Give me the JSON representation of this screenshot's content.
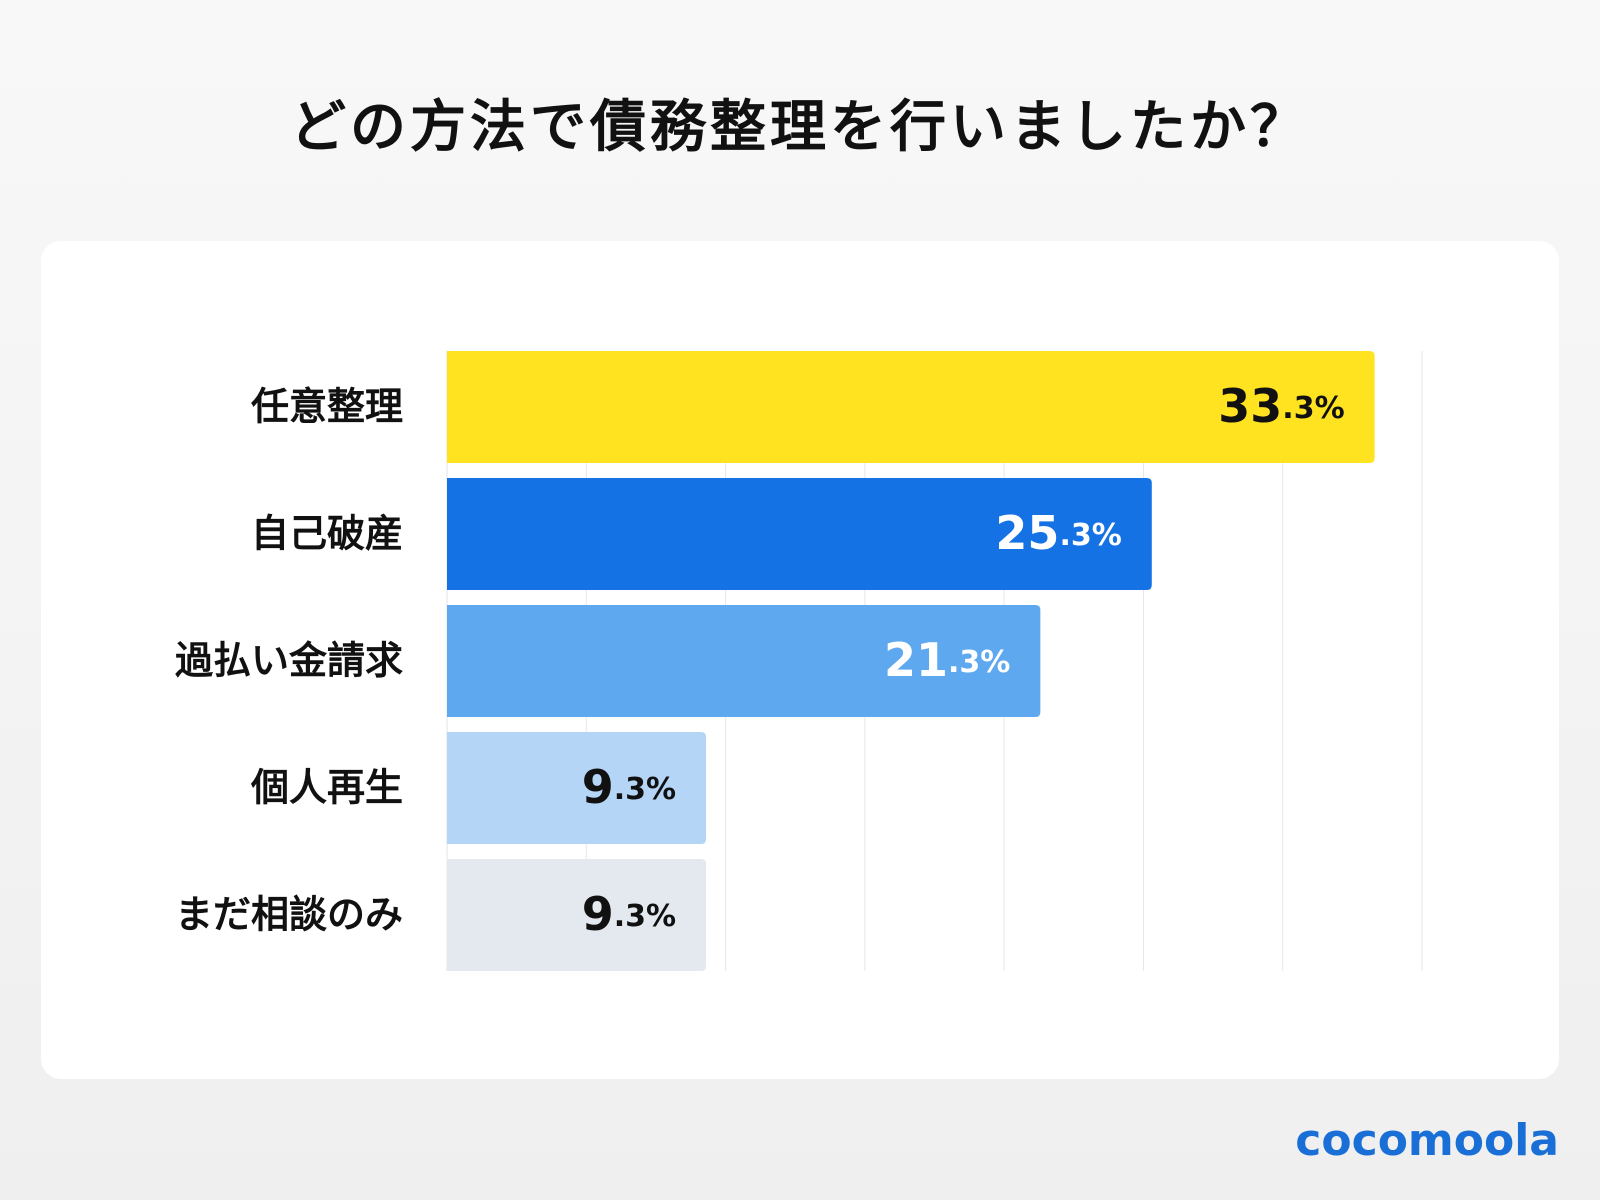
{
  "chart_data": {
    "type": "bar",
    "orientation": "horizontal",
    "title": "どの方法で債務整理を行いましたか？",
    "categories": [
      "任意整理",
      "自己破産",
      "過払い金請求",
      "個人再生",
      "まだ相談のみ"
    ],
    "values": [
      33.3,
      25.3,
      21.3,
      9.3,
      9.3
    ],
    "value_labels": [
      "33.3%",
      "25.3%",
      "21.3%",
      "9.3%",
      "9.3%"
    ],
    "colors": [
      "#ffe320",
      "#1472e4",
      "#5ea8f0",
      "#b5d5f7",
      "#e4e9ef"
    ],
    "xlim": [
      0,
      35
    ],
    "xticks": [
      0,
      5,
      10,
      15,
      20,
      25,
      30,
      35
    ],
    "grid": true
  },
  "logo": "cocomoola"
}
